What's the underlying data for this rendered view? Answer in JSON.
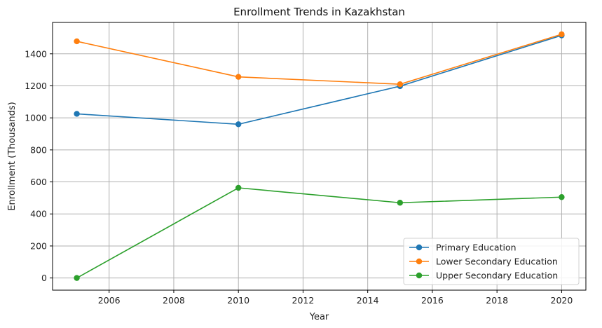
{
  "chart_data": {
    "type": "line",
    "title": "Enrollment Trends in Kazakhstan",
    "xlabel": "Year",
    "ylabel": "Enrollment (Thousands)",
    "x": [
      2005,
      2010,
      2015,
      2020
    ],
    "xlim": [
      2004.25,
      2020.75
    ],
    "ylim": [
      -76,
      1596
    ],
    "xticks": [
      2006,
      2008,
      2010,
      2012,
      2014,
      2016,
      2018,
      2020
    ],
    "yticks": [
      0,
      200,
      400,
      600,
      800,
      1000,
      1200,
      1400
    ],
    "grid": true,
    "legend_position": "lower-right",
    "series": [
      {
        "name": "Primary Education",
        "color": "#1f77b4",
        "values": [
          1025,
          960,
          1198,
          1515
        ]
      },
      {
        "name": "Lower Secondary Education",
        "color": "#ff7f0e",
        "values": [
          1478,
          1256,
          1210,
          1522
        ]
      },
      {
        "name": "Upper Secondary Education",
        "color": "#2ca02c",
        "values": [
          0,
          563,
          470,
          505
        ]
      }
    ]
  }
}
